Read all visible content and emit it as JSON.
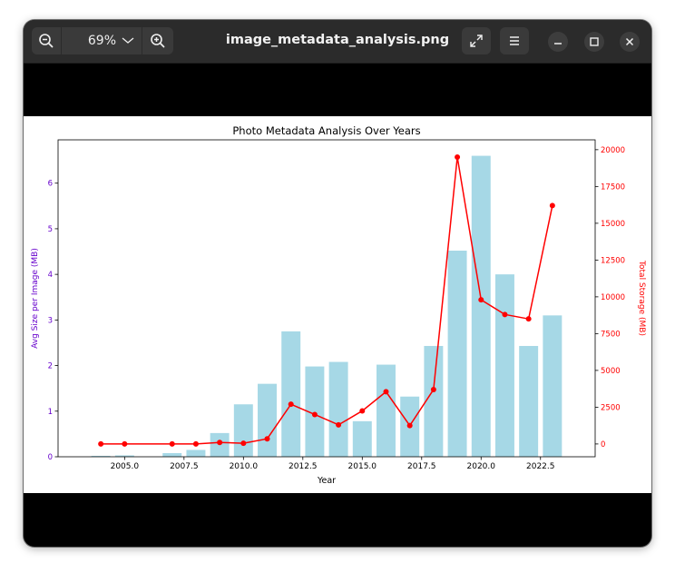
{
  "window": {
    "title": "image_metadata_analysis.png",
    "zoom_label": "69%"
  },
  "icons": {
    "zoom_out": "zoom-out-icon",
    "zoom_in": "zoom-in-icon",
    "fullscreen": "fullscreen-icon",
    "menu": "hamburger-menu-icon",
    "minimize": "minimize-icon",
    "maximize": "maximize-icon",
    "close": "close-icon"
  },
  "colors": {
    "bar": "#a6d8e6",
    "line": "#ff0000",
    "left_axis": "#6600cc",
    "right_axis": "#ff0000"
  },
  "chart_data": {
    "type": "bar+line",
    "title": "Photo Metadata Analysis Over Years",
    "xlabel": "Year",
    "ylabel_left": "Avg Size per Image (MB)",
    "ylabel_right": "Total Storage (MB)",
    "xlim": [
      2002.2,
      2024.8
    ],
    "ylim_left": [
      0,
      6.95
    ],
    "ylim_right": [
      -870,
      20670
    ],
    "x_ticks": [
      2005.0,
      2007.5,
      2010.0,
      2012.5,
      2015.0,
      2017.5,
      2020.0,
      2022.5
    ],
    "x_tick_labels": [
      "2005.0",
      "2007.5",
      "2010.0",
      "2012.5",
      "2015.0",
      "2017.5",
      "2020.0",
      "2022.5"
    ],
    "y_left_ticks": [
      0,
      1,
      2,
      3,
      4,
      5,
      6
    ],
    "y_left_tick_labels": [
      "0",
      "1",
      "2",
      "3",
      "4",
      "5",
      "6"
    ],
    "y_right_ticks": [
      0,
      2500,
      5000,
      7500,
      10000,
      12500,
      15000,
      17500,
      20000
    ],
    "y_right_tick_labels": [
      "0",
      "2500",
      "5000",
      "7500",
      "10000",
      "12500",
      "15000",
      "17500",
      "20000"
    ],
    "bars": {
      "name": "Avg Size per Image (MB)",
      "x": [
        2004,
        2005,
        2007,
        2008,
        2009,
        2010,
        2011,
        2012,
        2013,
        2014,
        2015,
        2016,
        2017,
        2018,
        2019,
        2020,
        2021,
        2022,
        2023
      ],
      "values": [
        0.02,
        0.03,
        0.08,
        0.15,
        0.52,
        1.15,
        1.6,
        2.75,
        1.98,
        2.08,
        0.78,
        2.02,
        1.32,
        2.43,
        4.52,
        6.6,
        4.0,
        2.43,
        3.1
      ]
    },
    "line": {
      "name": "Total Storage (MB)",
      "x": [
        2004,
        2005,
        2007,
        2008,
        2009,
        2010,
        2011,
        2012,
        2013,
        2014,
        2015,
        2016,
        2017,
        2018,
        2019,
        2020,
        2021,
        2022,
        2023
      ],
      "values": [
        0,
        0,
        0,
        0,
        100,
        50,
        350,
        2700,
        2000,
        1300,
        2250,
        3550,
        1250,
        3700,
        19500,
        9800,
        8800,
        8500,
        16200
      ]
    }
  }
}
